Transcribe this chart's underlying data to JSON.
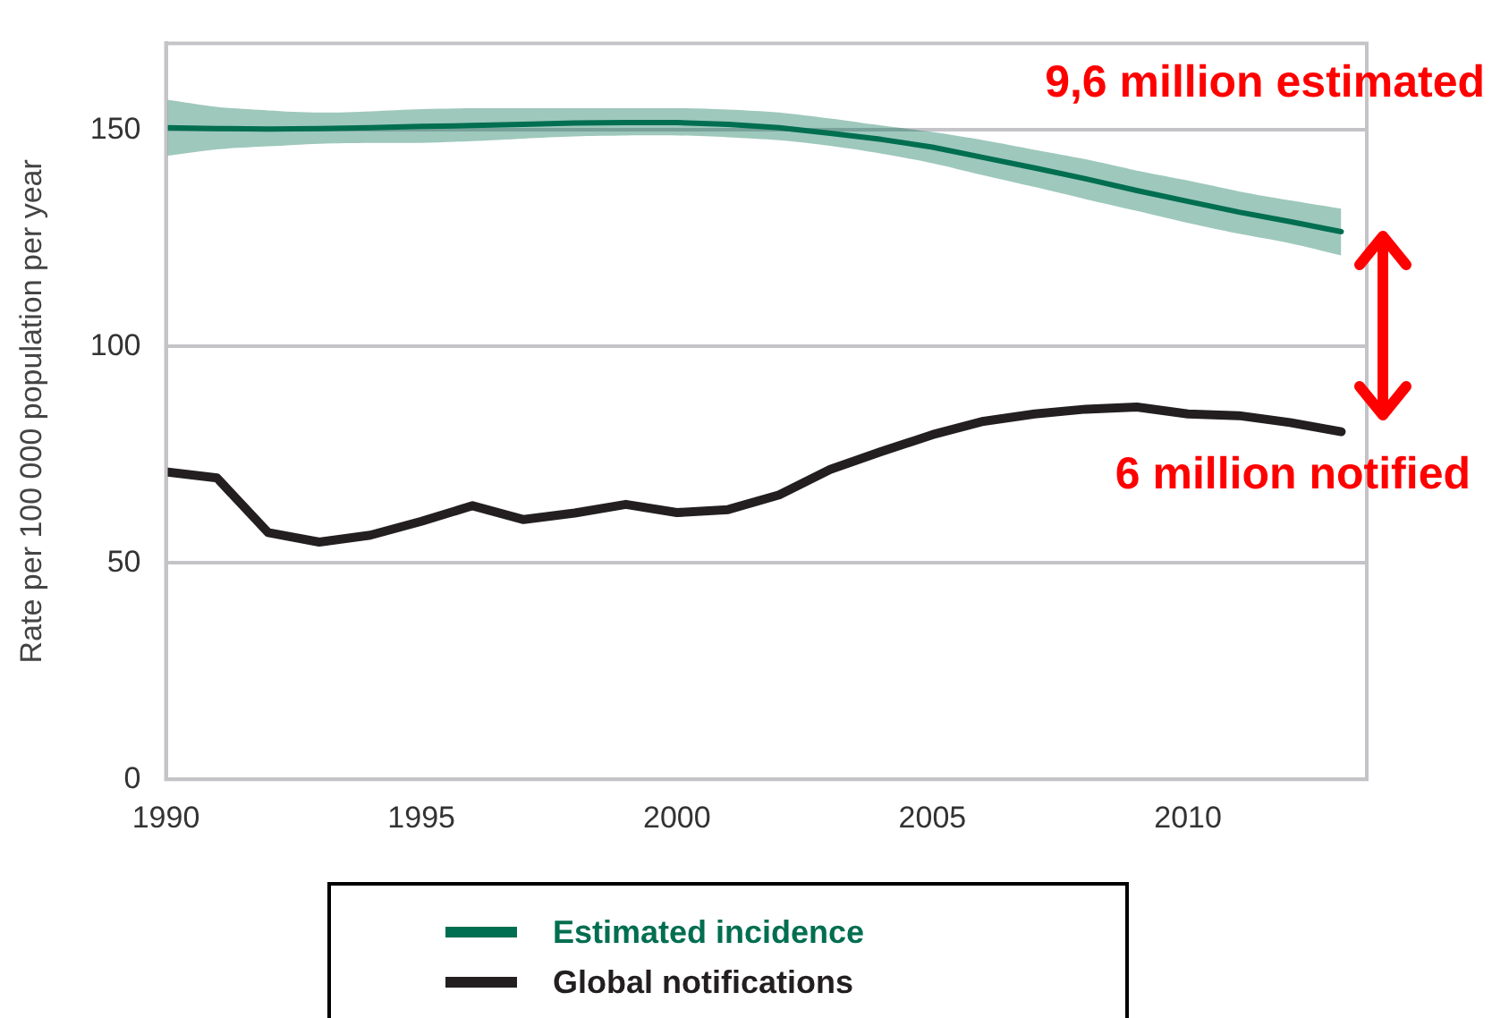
{
  "chart_data": {
    "type": "line",
    "ylabel": "Rate per 100 000 population per year",
    "x": [
      1990,
      1991,
      1992,
      1993,
      1994,
      1995,
      1996,
      1997,
      1998,
      1999,
      2000,
      2001,
      2002,
      2003,
      2004,
      2005,
      2006,
      2007,
      2008,
      2009,
      2010,
      2011,
      2012,
      2013
    ],
    "series": [
      {
        "name": "Estimated incidence",
        "color": "#006e50",
        "values": [
          150.5,
          150.3,
          150.2,
          150.3,
          150.5,
          150.8,
          151,
          151.3,
          151.6,
          151.7,
          151.7,
          151.3,
          150.5,
          149.2,
          147.8,
          146,
          143.6,
          141.2,
          138.7,
          136,
          133.5,
          131,
          128.8,
          126.5
        ],
        "lower": [
          144,
          145.5,
          146.2,
          146.8,
          147,
          147,
          147.4,
          148,
          148.5,
          148.7,
          148.7,
          148.3,
          147.6,
          146.3,
          144.5,
          142.3,
          139.5,
          136.8,
          134,
          131.3,
          128.5,
          126,
          123.8,
          121
        ],
        "upper": [
          157,
          155.3,
          154.5,
          154,
          154.3,
          154.8,
          155,
          155,
          155,
          155,
          155,
          154.7,
          154,
          152.6,
          151,
          149.5,
          147.6,
          145.4,
          143.2,
          140.6,
          138.3,
          135.8,
          133.7,
          131.8
        ]
      },
      {
        "name": "Global notifications",
        "color": "#231f20",
        "values": [
          71,
          69.6,
          57,
          54.8,
          56.4,
          59.6,
          63.2,
          60,
          61.5,
          63.5,
          61.6,
          62.3,
          65.7,
          71.6,
          75.7,
          79.6,
          82.7,
          84.4,
          85.5,
          86,
          84.4,
          84,
          82.4,
          80.3
        ]
      }
    ],
    "xlim": [
      1990,
      2013.5
    ],
    "xticks": [
      1990,
      1995,
      2000,
      2005,
      2010
    ],
    "ylim": [
      0,
      170
    ],
    "yticks": [
      0,
      50,
      100,
      150
    ],
    "grid": "y",
    "legend": "bottom",
    "marker": "none",
    "line_style": "solid",
    "annotations": [
      "9,6 million estimated",
      "6 million notified"
    ]
  }
}
